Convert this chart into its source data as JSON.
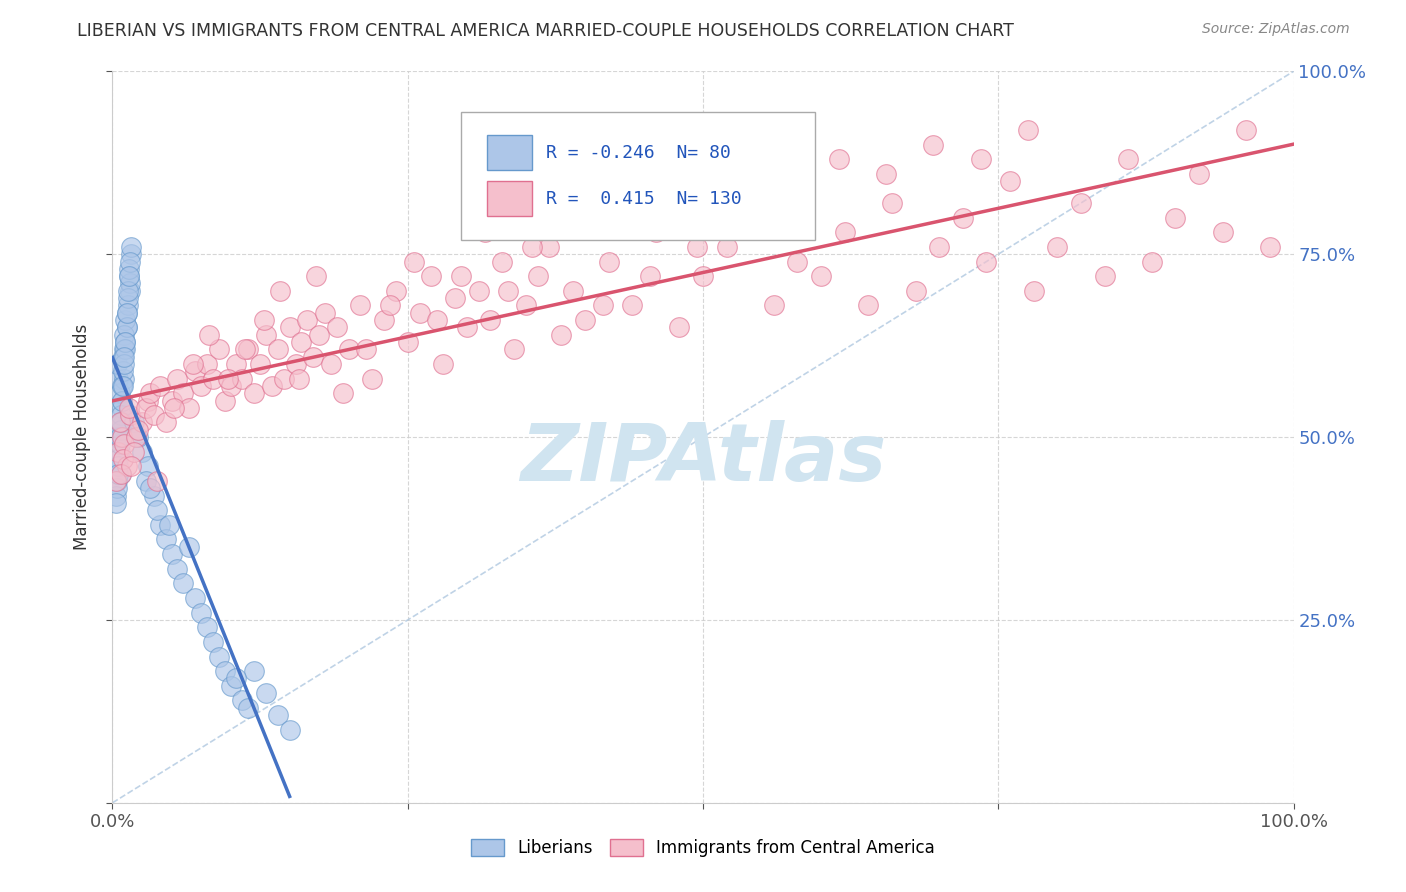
{
  "title": "LIBERIAN VS IMMIGRANTS FROM CENTRAL AMERICA MARRIED-COUPLE HOUSEHOLDS CORRELATION CHART",
  "source": "Source: ZipAtlas.com",
  "ylabel": "Married-couple Households",
  "xlim": [
    0,
    1
  ],
  "ylim": [
    0,
    1
  ],
  "blue_R": -0.246,
  "blue_N": 80,
  "pink_R": 0.415,
  "pink_N": 130,
  "blue_color": "#adc6e8",
  "blue_edge_color": "#6699cc",
  "pink_color": "#f5bfcc",
  "pink_edge_color": "#e07090",
  "blue_line_color": "#4472c4",
  "pink_line_color": "#d9546e",
  "background_color": "#ffffff",
  "grid_color": "#cccccc",
  "title_color": "#333333",
  "watermark_color": "#d0e4f0",
  "blue_scatter_x": [
    0.005,
    0.01,
    0.008,
    0.012,
    0.006,
    0.015,
    0.009,
    0.004,
    0.011,
    0.007,
    0.014,
    0.003,
    0.01,
    0.006,
    0.013,
    0.008,
    0.016,
    0.005,
    0.009,
    0.012,
    0.007,
    0.011,
    0.004,
    0.015,
    0.01,
    0.006,
    0.013,
    0.008,
    0.003,
    0.014,
    0.009,
    0.012,
    0.007,
    0.016,
    0.005,
    0.011,
    0.004,
    0.01,
    0.013,
    0.006,
    0.008,
    0.015,
    0.003,
    0.011,
    0.007,
    0.014,
    0.009,
    0.005,
    0.012,
    0.01,
    0.02,
    0.025,
    0.018,
    0.03,
    0.022,
    0.028,
    0.035,
    0.04,
    0.045,
    0.05,
    0.038,
    0.055,
    0.06,
    0.07,
    0.075,
    0.08,
    0.085,
    0.09,
    0.095,
    0.1,
    0.065,
    0.11,
    0.12,
    0.13,
    0.14,
    0.15,
    0.048,
    0.032,
    0.115,
    0.105
  ],
  "blue_scatter_y": [
    0.58,
    0.62,
    0.55,
    0.65,
    0.48,
    0.7,
    0.52,
    0.6,
    0.66,
    0.45,
    0.72,
    0.5,
    0.64,
    0.56,
    0.68,
    0.54,
    0.75,
    0.47,
    0.61,
    0.67,
    0.53,
    0.63,
    0.44,
    0.71,
    0.58,
    0.49,
    0.69,
    0.57,
    0.42,
    0.73,
    0.59,
    0.65,
    0.51,
    0.76,
    0.46,
    0.62,
    0.43,
    0.6,
    0.7,
    0.5,
    0.55,
    0.74,
    0.41,
    0.63,
    0.52,
    0.72,
    0.57,
    0.45,
    0.67,
    0.61,
    0.5,
    0.48,
    0.52,
    0.46,
    0.5,
    0.44,
    0.42,
    0.38,
    0.36,
    0.34,
    0.4,
    0.32,
    0.3,
    0.28,
    0.26,
    0.24,
    0.22,
    0.2,
    0.18,
    0.16,
    0.35,
    0.14,
    0.18,
    0.15,
    0.12,
    0.1,
    0.38,
    0.43,
    0.13,
    0.17
  ],
  "pink_scatter_x": [
    0.005,
    0.008,
    0.012,
    0.006,
    0.01,
    0.015,
    0.009,
    0.003,
    0.014,
    0.007,
    0.02,
    0.025,
    0.018,
    0.03,
    0.022,
    0.028,
    0.016,
    0.032,
    0.035,
    0.04,
    0.045,
    0.05,
    0.055,
    0.06,
    0.065,
    0.07,
    0.075,
    0.08,
    0.085,
    0.09,
    0.095,
    0.1,
    0.105,
    0.11,
    0.115,
    0.12,
    0.125,
    0.13,
    0.135,
    0.14,
    0.145,
    0.15,
    0.155,
    0.16,
    0.165,
    0.17,
    0.175,
    0.18,
    0.185,
    0.19,
    0.2,
    0.21,
    0.22,
    0.23,
    0.24,
    0.25,
    0.26,
    0.27,
    0.28,
    0.29,
    0.3,
    0.31,
    0.32,
    0.33,
    0.34,
    0.35,
    0.36,
    0.37,
    0.38,
    0.39,
    0.4,
    0.42,
    0.44,
    0.46,
    0.48,
    0.5,
    0.52,
    0.54,
    0.56,
    0.58,
    0.6,
    0.62,
    0.64,
    0.66,
    0.68,
    0.7,
    0.72,
    0.74,
    0.76,
    0.78,
    0.8,
    0.82,
    0.84,
    0.86,
    0.88,
    0.9,
    0.92,
    0.94,
    0.96,
    0.98,
    0.038,
    0.052,
    0.068,
    0.082,
    0.098,
    0.112,
    0.128,
    0.142,
    0.158,
    0.172,
    0.195,
    0.215,
    0.235,
    0.255,
    0.275,
    0.295,
    0.315,
    0.335,
    0.355,
    0.375,
    0.415,
    0.455,
    0.495,
    0.535,
    0.575,
    0.615,
    0.655,
    0.695,
    0.735,
    0.775
  ],
  "pink_scatter_y": [
    0.48,
    0.5,
    0.46,
    0.52,
    0.49,
    0.53,
    0.47,
    0.44,
    0.54,
    0.45,
    0.5,
    0.52,
    0.48,
    0.55,
    0.51,
    0.54,
    0.46,
    0.56,
    0.53,
    0.57,
    0.52,
    0.55,
    0.58,
    0.56,
    0.54,
    0.59,
    0.57,
    0.6,
    0.58,
    0.62,
    0.55,
    0.57,
    0.6,
    0.58,
    0.62,
    0.56,
    0.6,
    0.64,
    0.57,
    0.62,
    0.58,
    0.65,
    0.6,
    0.63,
    0.66,
    0.61,
    0.64,
    0.67,
    0.6,
    0.65,
    0.62,
    0.68,
    0.58,
    0.66,
    0.7,
    0.63,
    0.67,
    0.72,
    0.6,
    0.69,
    0.65,
    0.7,
    0.66,
    0.74,
    0.62,
    0.68,
    0.72,
    0.76,
    0.64,
    0.7,
    0.66,
    0.74,
    0.68,
    0.78,
    0.65,
    0.72,
    0.76,
    0.8,
    0.68,
    0.74,
    0.72,
    0.78,
    0.68,
    0.82,
    0.7,
    0.76,
    0.8,
    0.74,
    0.85,
    0.7,
    0.76,
    0.82,
    0.72,
    0.88,
    0.74,
    0.8,
    0.86,
    0.78,
    0.92,
    0.76,
    0.44,
    0.54,
    0.6,
    0.64,
    0.58,
    0.62,
    0.66,
    0.7,
    0.58,
    0.72,
    0.56,
    0.62,
    0.68,
    0.74,
    0.66,
    0.72,
    0.78,
    0.7,
    0.76,
    0.82,
    0.68,
    0.72,
    0.76,
    0.8,
    0.84,
    0.88,
    0.86,
    0.9,
    0.88,
    0.92
  ]
}
